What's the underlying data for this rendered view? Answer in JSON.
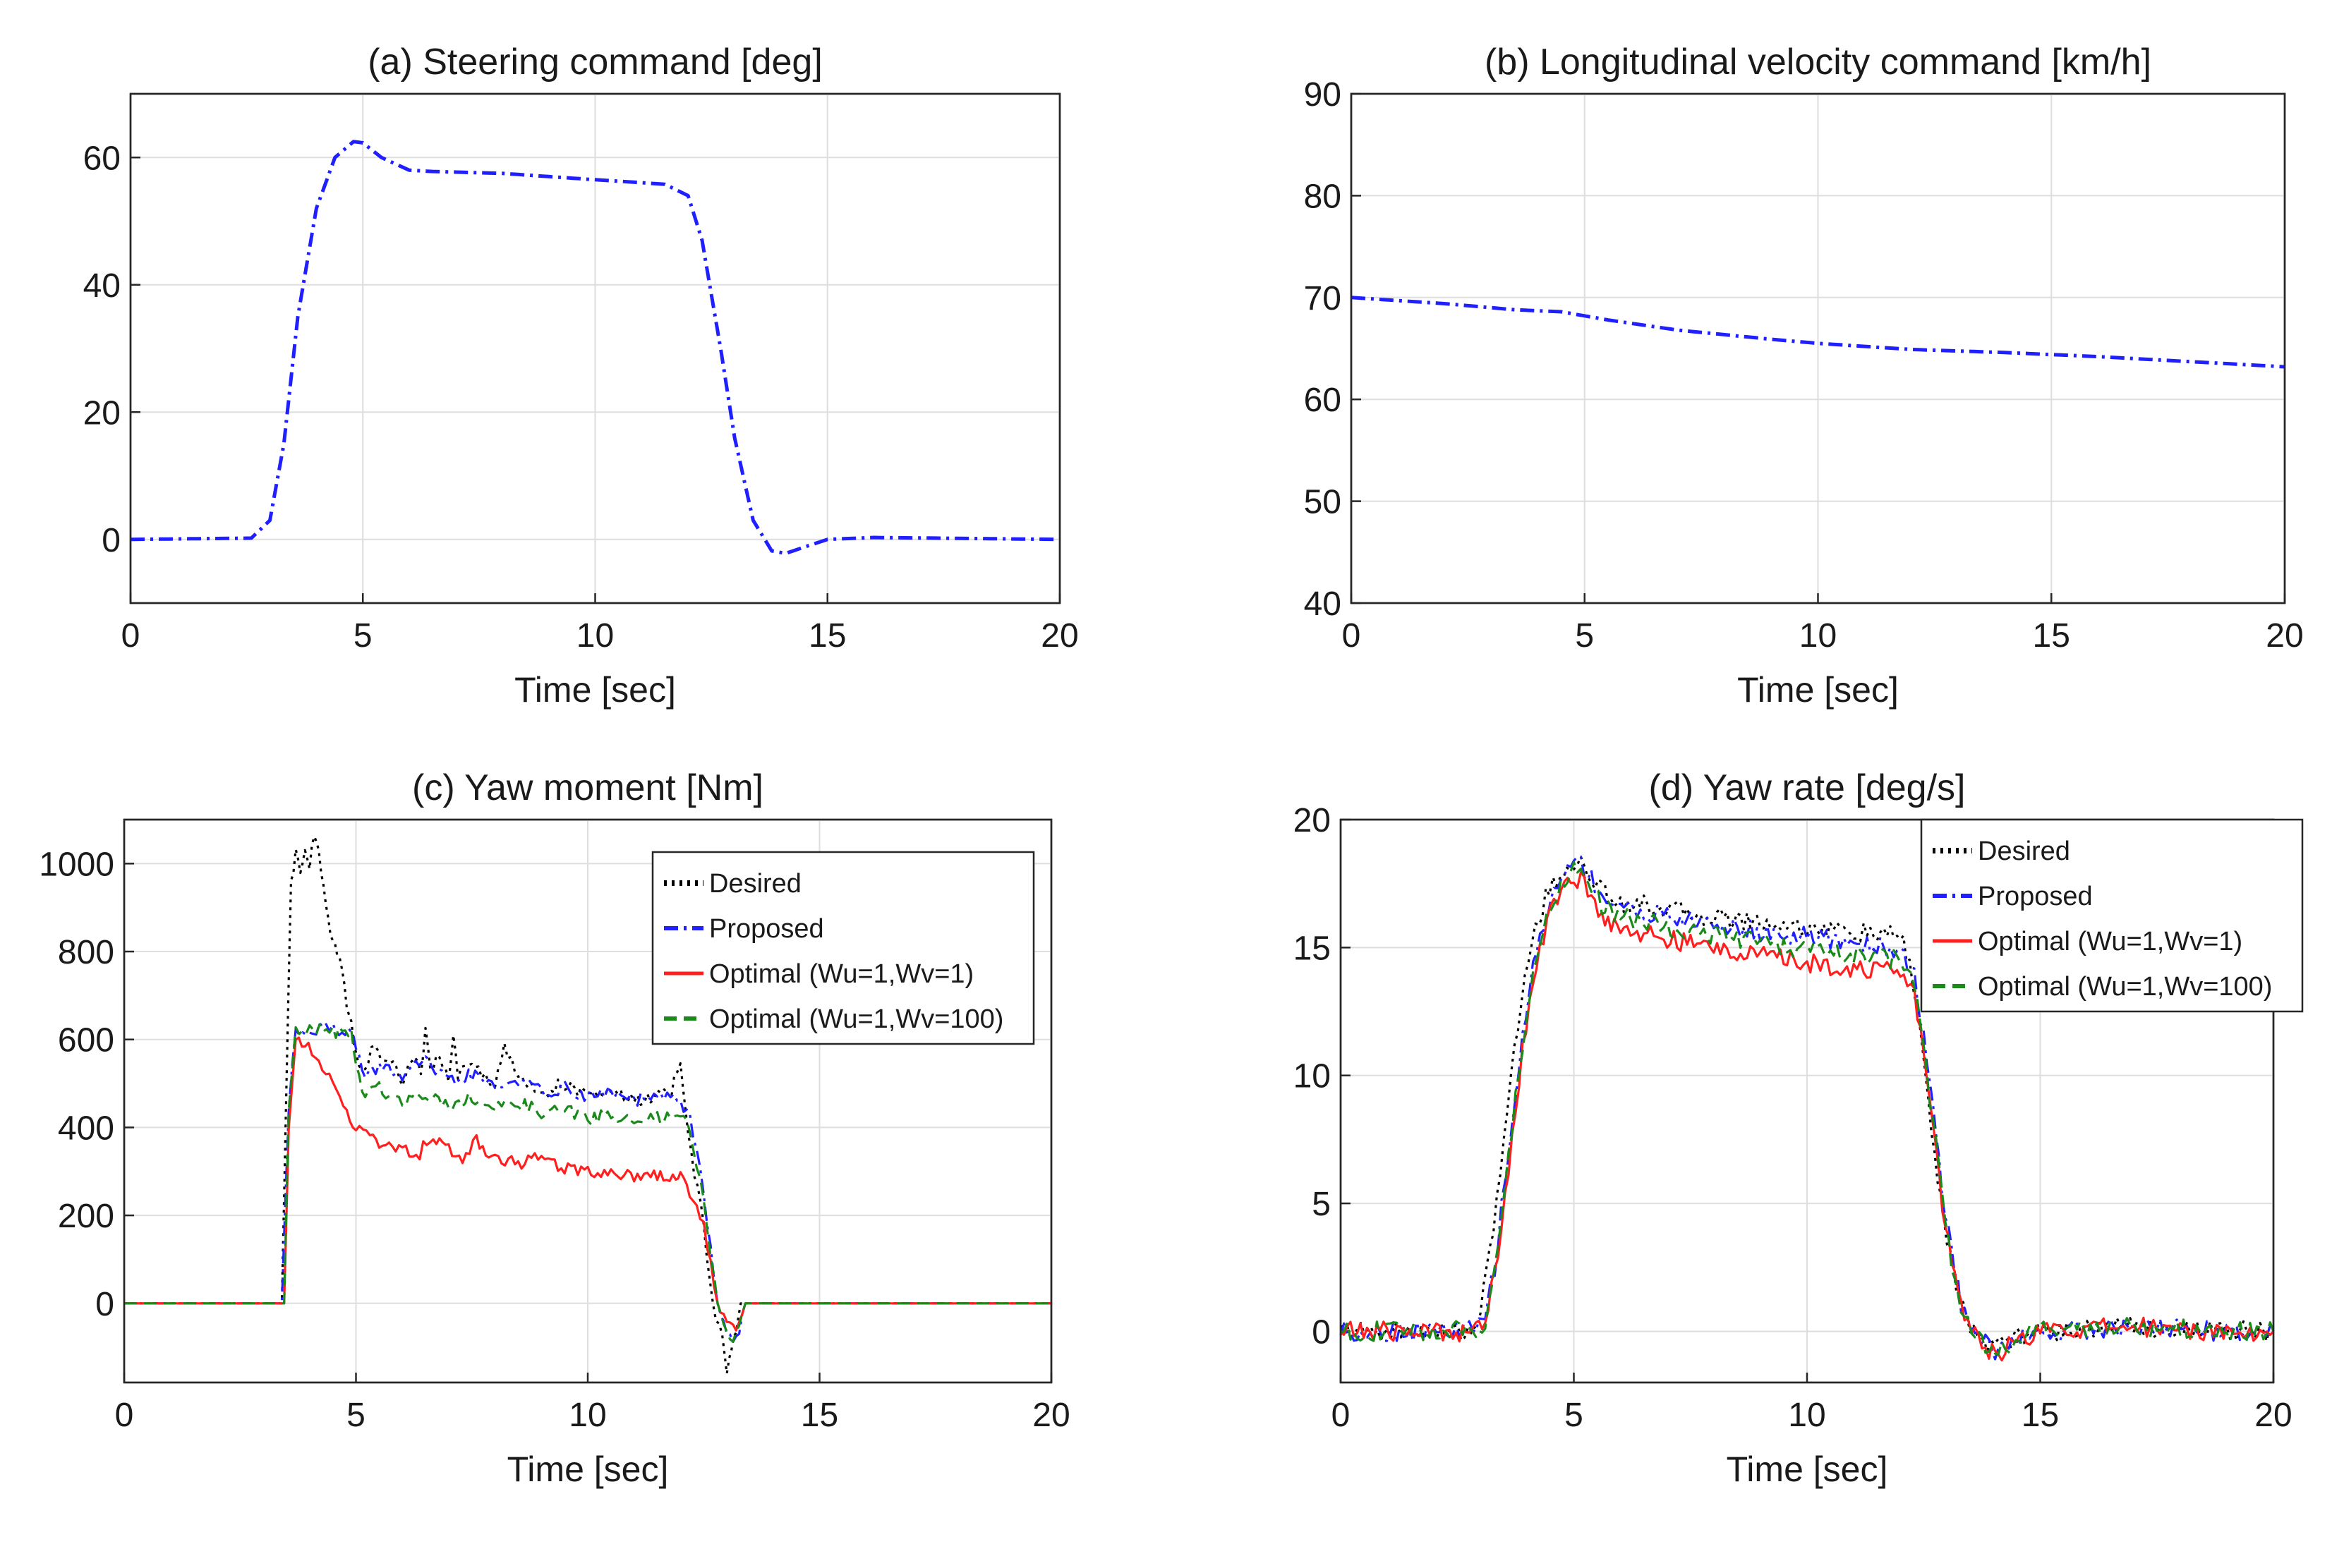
{
  "figure": {
    "panels": [
      "(a) Steering command [deg]",
      "(b) Longitudinal velocity command [km/h]",
      "(c) Yaw moment [Nm]",
      "(d) Yaw rate [deg/s]"
    ]
  },
  "colors": {
    "desired": "#000000",
    "proposed": "#1f1fff",
    "optimal_1": "#ff1f1f",
    "optimal_100": "#1a8a1a",
    "command": "#1f1fff"
  },
  "chart_data": [
    {
      "id": "a",
      "type": "line",
      "title": "(a) Steering command [deg]",
      "xlabel": "Time [sec]",
      "ylabel": "",
      "xlim": [
        0,
        20
      ],
      "ylim": [
        -10,
        70
      ],
      "xticks": [
        0,
        5,
        10,
        15,
        20
      ],
      "yticks": [
        0,
        20,
        40,
        60
      ],
      "grid": true,
      "legend": null,
      "series": [
        {
          "name": "Steering command",
          "style": "dashdot",
          "color": "#1f1fff",
          "x": [
            0,
            2.6,
            3.0,
            3.3,
            3.6,
            4.0,
            4.4,
            4.8,
            5.0,
            5.4,
            6.0,
            6.5,
            8.0,
            10.0,
            11.5,
            12.0,
            12.3,
            12.7,
            13.0,
            13.4,
            13.8,
            14.1,
            14.5,
            15.0,
            16.0,
            20.0
          ],
          "y": [
            0,
            0.2,
            3,
            15,
            35,
            52,
            60,
            62.5,
            62.3,
            60,
            58,
            57.8,
            57.5,
            56.5,
            55.8,
            54,
            47,
            30,
            16,
            3,
            -1.8,
            -2.2,
            -1.2,
            0,
            0.3,
            0
          ]
        }
      ]
    },
    {
      "id": "b",
      "type": "line",
      "title": "(b) Longitudinal velocity command [km/h]",
      "xlabel": "Time [sec]",
      "ylabel": "",
      "xlim": [
        0,
        20
      ],
      "ylim": [
        40,
        90
      ],
      "xticks": [
        0,
        5,
        10,
        15,
        20
      ],
      "yticks": [
        40,
        50,
        60,
        70,
        80,
        90
      ],
      "grid": true,
      "legend": null,
      "series": [
        {
          "name": "Velocity command",
          "style": "dashdot",
          "color": "#1f1fff",
          "x": [
            0,
            2,
            3.5,
            4.5,
            5.5,
            7,
            9,
            10,
            12,
            14,
            16,
            18,
            20
          ],
          "y": [
            70,
            69.4,
            68.8,
            68.6,
            67.8,
            66.8,
            65.9,
            65.5,
            64.9,
            64.6,
            64.2,
            63.7,
            63.2
          ]
        }
      ]
    },
    {
      "id": "c",
      "type": "line",
      "title": "(c) Yaw moment [Nm]",
      "xlabel": "Time [sec]",
      "ylabel": "",
      "xlim": [
        0,
        20
      ],
      "ylim": [
        -180,
        1100
      ],
      "xticks": [
        0,
        5,
        10,
        15,
        20
      ],
      "yticks": [
        0,
        200,
        400,
        600,
        800,
        1000
      ],
      "grid": true,
      "legend": {
        "location": "top-right",
        "entries": [
          "Desired",
          "Proposed",
          "Optimal (Wu=1,Wv=1)",
          "Optimal (Wu=1,Wv=100)"
        ]
      },
      "series": [
        {
          "name": "Desired",
          "style": "dotted",
          "color": "#000000",
          "x": [
            0,
            3.4,
            3.5,
            3.6,
            3.7,
            3.8,
            3.9,
            4.0,
            4.1,
            4.2,
            4.3,
            4.4,
            4.5,
            4.6,
            4.7,
            4.8,
            4.9,
            5.0,
            5.2,
            5.4,
            5.6,
            5.8,
            6.0,
            6.2,
            6.4,
            6.5,
            6.6,
            6.8,
            7.0,
            7.1,
            7.2,
            7.5,
            8.0,
            8.2,
            8.5,
            9.0,
            9.5,
            10.0,
            10.5,
            11.0,
            11.5,
            11.8,
            12.0,
            12.1,
            12.3,
            12.5,
            12.7,
            12.9,
            13.0,
            13.1,
            13.2,
            13.3,
            13.5,
            14.0,
            20.0
          ],
          "y": [
            0,
            0,
            500,
            950,
            1030,
            990,
            1040,
            1000,
            1060,
            1020,
            950,
            880,
            820,
            800,
            750,
            680,
            640,
            560,
            530,
            590,
            540,
            560,
            510,
            560,
            530,
            630,
            540,
            560,
            500,
            620,
            520,
            540,
            500,
            590,
            510,
            480,
            500,
            470,
            480,
            460,
            470,
            480,
            550,
            440,
            300,
            180,
            0,
            -80,
            -160,
            -110,
            -60,
            0,
            0,
            0,
            0
          ]
        },
        {
          "name": "Proposed",
          "style": "dashdot",
          "color": "#1f1fff",
          "x": [
            0,
            3.4,
            3.55,
            3.7,
            4.0,
            4.5,
            4.9,
            5.0,
            5.2,
            5.5,
            6.0,
            6.5,
            7.0,
            7.5,
            8.0,
            8.5,
            9.0,
            9.5,
            10.0,
            10.5,
            11.0,
            11.5,
            12.0,
            12.2,
            12.5,
            12.8,
            13.0,
            13.2,
            13.4,
            14.0,
            20.0
          ],
          "y": [
            0,
            0,
            450,
            620,
            625,
            625,
            620,
            580,
            510,
            540,
            520,
            550,
            500,
            520,
            490,
            510,
            480,
            490,
            470,
            480,
            460,
            470,
            460,
            430,
            250,
            0,
            -60,
            -90,
            0,
            0,
            0
          ]
        },
        {
          "name": "Optimal (Wu=1,Wv=1)",
          "style": "solid",
          "color": "#ff1f1f",
          "x": [
            0,
            3.45,
            3.55,
            3.7,
            3.9,
            4.2,
            4.5,
            4.8,
            5.0,
            5.3,
            5.5,
            6.0,
            6.3,
            6.6,
            7.0,
            7.3,
            7.6,
            8.0,
            8.5,
            9.0,
            9.5,
            10.0,
            10.5,
            11.0,
            11.5,
            11.9,
            12.0,
            12.2,
            12.5,
            12.8,
            13.0,
            13.2,
            13.4,
            14.0,
            20.0
          ],
          "y": [
            0,
            0,
            400,
            600,
            590,
            560,
            490,
            440,
            400,
            380,
            360,
            350,
            330,
            380,
            350,
            330,
            370,
            330,
            320,
            330,
            310,
            300,
            300,
            290,
            295,
            280,
            310,
            250,
            180,
            0,
            -50,
            -60,
            0,
            0,
            0
          ]
        },
        {
          "name": "Optimal (Wu=1,Wv=100)",
          "style": "dashed",
          "color": "#1a8a1a",
          "x": [
            0,
            3.45,
            3.55,
            3.7,
            4.0,
            4.5,
            4.9,
            5.0,
            5.2,
            5.5,
            6.0,
            6.5,
            7.0,
            7.5,
            8.0,
            8.5,
            9.0,
            9.5,
            10.0,
            10.5,
            11.0,
            11.5,
            12.0,
            12.2,
            12.5,
            12.8,
            13.0,
            13.2,
            13.4,
            14.0,
            20.0
          ],
          "y": [
            0,
            0,
            440,
            615,
            620,
            620,
            610,
            540,
            470,
            490,
            460,
            480,
            450,
            470,
            440,
            460,
            430,
            440,
            420,
            430,
            410,
            420,
            420,
            400,
            230,
            0,
            -60,
            -80,
            0,
            0,
            0
          ]
        }
      ]
    },
    {
      "id": "d",
      "type": "line",
      "title": "(d) Yaw rate [deg/s]",
      "xlabel": "Time [sec]",
      "ylabel": "",
      "xlim": [
        0,
        20
      ],
      "ylim": [
        -2,
        20
      ],
      "xticks": [
        0,
        5,
        10,
        15,
        20
      ],
      "yticks": [
        0,
        5,
        10,
        15,
        20
      ],
      "grid": true,
      "legend": {
        "location": "top-right",
        "entries": [
          "Desired",
          "Proposed",
          "Optimal (Wu=1,Wv=1)",
          "Optimal (Wu=1,Wv=100)"
        ]
      },
      "series": [
        {
          "name": "Desired",
          "style": "dotted",
          "color": "#000000",
          "x": [
            0,
            2.8,
            3.0,
            3.2,
            3.5,
            3.8,
            4.1,
            4.4,
            4.7,
            5.0,
            5.3,
            5.6,
            6.0,
            7.0,
            8.0,
            9.0,
            10.0,
            11.0,
            12.0,
            12.2,
            12.4,
            12.6,
            12.8,
            13.0,
            13.2,
            13.5,
            13.8,
            14.0,
            14.3,
            15.0,
            16.0,
            17.0,
            18.0,
            19.0,
            20.0
          ],
          "y": [
            0,
            0,
            0.8,
            3,
            7.5,
            12,
            15.3,
            17.0,
            17.8,
            18.4,
            18.0,
            17.2,
            16.8,
            16.5,
            16.2,
            16.0,
            15.8,
            15.6,
            15.4,
            14.5,
            12,
            9,
            6,
            3.5,
            1.5,
            0.3,
            -0.4,
            -0.6,
            -0.3,
            0,
            0.1,
            0.2,
            0.1,
            0,
            0
          ]
        },
        {
          "name": "Proposed",
          "style": "dashdot",
          "color": "#1f1fff",
          "x": [
            0,
            2.9,
            3.1,
            3.3,
            3.6,
            3.9,
            4.2,
            4.5,
            4.8,
            5.0,
            5.3,
            5.6,
            6.0,
            7.0,
            8.0,
            9.0,
            10.0,
            11.0,
            12.0,
            12.3,
            12.5,
            12.7,
            12.9,
            13.1,
            13.3,
            13.6,
            13.9,
            14.1,
            14.4,
            15.0,
            16.0,
            17.0,
            18.0,
            19.0,
            20.0
          ],
          "y": [
            0,
            0,
            0.6,
            2.5,
            7,
            11.5,
            15.0,
            16.8,
            17.9,
            18.5,
            18.0,
            17.0,
            16.6,
            16.2,
            15.9,
            15.6,
            15.4,
            15.2,
            14.9,
            14.0,
            11.5,
            8.5,
            5.5,
            3.0,
            1.2,
            0.1,
            -0.6,
            -0.8,
            -0.4,
            0,
            0.1,
            0.2,
            0.1,
            0,
            0
          ]
        },
        {
          "name": "Optimal (Wu=1,Wv=1)",
          "style": "solid",
          "color": "#ff1f1f",
          "x": [
            0,
            2.9,
            3.1,
            3.3,
            3.6,
            3.9,
            4.2,
            4.5,
            4.8,
            5.0,
            5.3,
            5.6,
            6.0,
            7.0,
            8.0,
            9.0,
            10.0,
            11.0,
            12.0,
            12.3,
            12.5,
            12.7,
            12.9,
            13.1,
            13.3,
            13.6,
            13.9,
            14.1,
            14.4,
            15.0,
            16.0,
            17.0,
            18.0,
            19.0,
            20.0
          ],
          "y": [
            0,
            0,
            0.5,
            2.2,
            6.5,
            11,
            14.5,
            16.3,
            17.4,
            17.9,
            17.2,
            16.2,
            15.8,
            15.3,
            15.0,
            14.7,
            14.4,
            14.2,
            14.0,
            13.2,
            11,
            8,
            5,
            2.7,
            1.0,
            0,
            -0.7,
            -0.9,
            -0.5,
            0,
            0.1,
            0.2,
            0.1,
            0,
            0
          ]
        },
        {
          "name": "Optimal (Wu=1,Wv=100)",
          "style": "dashed",
          "color": "#1a8a1a",
          "x": [
            0,
            2.9,
            3.1,
            3.3,
            3.6,
            3.9,
            4.2,
            4.5,
            4.8,
            5.0,
            5.3,
            5.6,
            6.0,
            7.0,
            8.0,
            9.0,
            10.0,
            11.0,
            12.0,
            12.3,
            12.5,
            12.7,
            12.9,
            13.1,
            13.3,
            13.6,
            13.9,
            14.1,
            14.4,
            15.0,
            16.0,
            17.0,
            18.0,
            19.0,
            20.0
          ],
          "y": [
            0,
            0,
            0.5,
            2.3,
            6.8,
            11.2,
            14.8,
            16.6,
            17.7,
            18.2,
            17.6,
            16.6,
            16.2,
            15.8,
            15.5,
            15.2,
            14.9,
            14.7,
            14.5,
            13.6,
            11.2,
            8.2,
            5.2,
            2.8,
            1.1,
            0,
            -0.6,
            -0.8,
            -0.4,
            0,
            0.1,
            0.2,
            0.1,
            0,
            0
          ]
        }
      ]
    }
  ]
}
